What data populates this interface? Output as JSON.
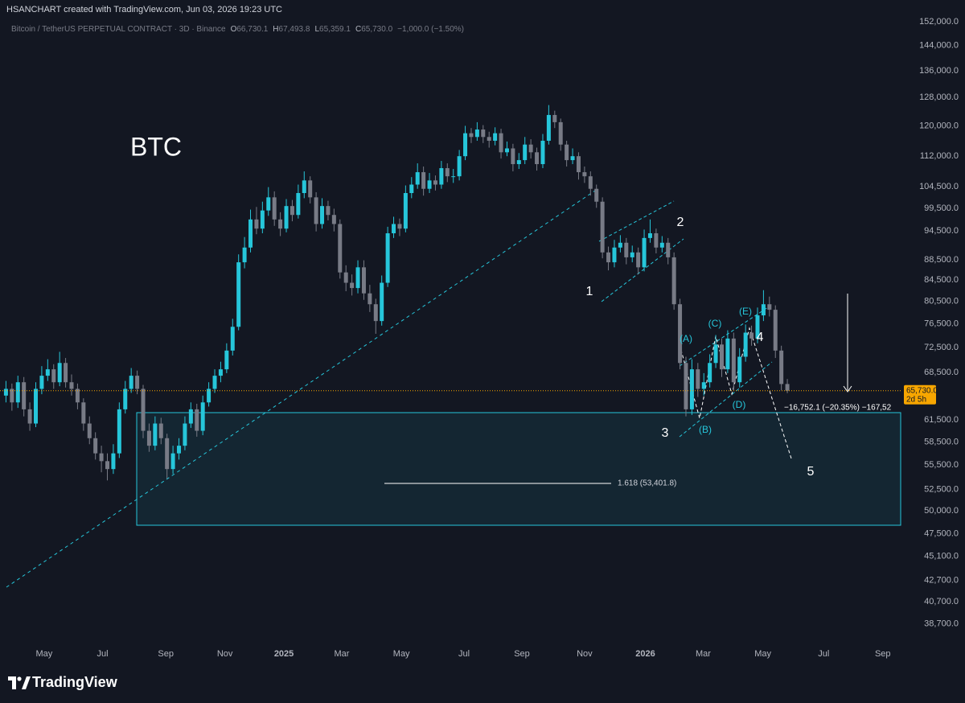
{
  "header": "HSANCHART created with TradingView.com, Jun 03, 2026 19:23 UTC",
  "brand": "TradingView",
  "chart_data": {
    "type": "candlestick",
    "title": "Bitcoin / TetherUS PERPETUAL CONTRACT · 3D · Binance",
    "ohlc_legend": [
      {
        "key": "O",
        "value": "66,730.1"
      },
      {
        "key": "H",
        "value": "67,493.8"
      },
      {
        "key": "L",
        "value": "65,359.1"
      },
      {
        "key": "C",
        "value": "65,730.0"
      }
    ],
    "change": "−1,000.0 (−1.50%)",
    "up_color": "#26c6da",
    "down_color": "#787b86",
    "log_scale": true,
    "grid": false,
    "ylim": [
      37000,
      154000
    ],
    "yticks": [
      {
        "value": 152000,
        "label": "152,000.0"
      },
      {
        "value": 144000,
        "label": "144,000.0"
      },
      {
        "value": 136000,
        "label": "136,000.0"
      },
      {
        "value": 128000,
        "label": "128,000.0"
      },
      {
        "value": 120000,
        "label": "120,000.0"
      },
      {
        "value": 112000,
        "label": "112,000.0"
      },
      {
        "value": 104500,
        "label": "104,500.0"
      },
      {
        "value": 99500,
        "label": "99,500.0"
      },
      {
        "value": 94500,
        "label": "94,500.0"
      },
      {
        "value": 88500,
        "label": "88,500.0"
      },
      {
        "value": 84500,
        "label": "84,500.0"
      },
      {
        "value": 80500,
        "label": "80,500.0"
      },
      {
        "value": 76500,
        "label": "76,500.0"
      },
      {
        "value": 72500,
        "label": "72,500.0"
      },
      {
        "value": 68500,
        "label": "68,500.0"
      },
      {
        "value": 61500,
        "label": "61,500.0"
      },
      {
        "value": 58500,
        "label": "58,500.0"
      },
      {
        "value": 55500,
        "label": "55,500.0"
      },
      {
        "value": 52500,
        "label": "52,500.0"
      },
      {
        "value": 50000,
        "label": "50,000.0"
      },
      {
        "value": 47500,
        "label": "47,500.0"
      },
      {
        "value": 45100,
        "label": "45,100.0"
      },
      {
        "value": 42700,
        "label": "42,700.0"
      },
      {
        "value": 40700,
        "label": "40,700.0"
      },
      {
        "value": 38700,
        "label": "38,700.0"
      }
    ],
    "xlim": [
      -1,
      150
    ],
    "xticks": [
      {
        "value": 6.4,
        "label": "May"
      },
      {
        "value": 16.2,
        "label": "Jul"
      },
      {
        "value": 26.8,
        "label": "Sep"
      },
      {
        "value": 36.7,
        "label": "Nov"
      },
      {
        "value": 46.6,
        "label": "2025"
      },
      {
        "value": 56.3,
        "label": "Mar"
      },
      {
        "value": 66.3,
        "label": "May"
      },
      {
        "value": 76.8,
        "label": "Jul"
      },
      {
        "value": 86.5,
        "label": "Sep"
      },
      {
        "value": 97,
        "label": "Nov"
      },
      {
        "value": 107.2,
        "label": "2026"
      },
      {
        "value": 116.9,
        "label": "Mar"
      },
      {
        "value": 126.9,
        "label": "May"
      },
      {
        "value": 137.1,
        "label": "Jul"
      },
      {
        "value": 147,
        "label": "Sep"
      }
    ],
    "candles": [
      [
        65000,
        67200,
        64000,
        66000
      ],
      [
        66000,
        66800,
        62800,
        64000
      ],
      [
        64000,
        68000,
        63200,
        67000
      ],
      [
        67000,
        67800,
        62000,
        63000
      ],
      [
        63000,
        64000,
        60000,
        61000
      ],
      [
        61000,
        67000,
        60500,
        66000
      ],
      [
        66000,
        69500,
        65200,
        68000
      ],
      [
        68000,
        70600,
        67200,
        69000
      ],
      [
        69000,
        69800,
        66000,
        67000
      ],
      [
        67000,
        71800,
        66400,
        70000
      ],
      [
        70000,
        70800,
        66200,
        67000
      ],
      [
        67000,
        68200,
        65000,
        66000
      ],
      [
        66000,
        66800,
        63000,
        64000
      ],
      [
        64000,
        64600,
        60000,
        61000
      ],
      [
        61000,
        62000,
        58200,
        59000
      ],
      [
        59000,
        59800,
        56200,
        57000
      ],
      [
        57000,
        58000,
        54600,
        56000
      ],
      [
        56000,
        57000,
        53600,
        55000
      ],
      [
        55000,
        58200,
        54400,
        57000
      ],
      [
        57000,
        64000,
        56400,
        63000
      ],
      [
        63000,
        67200,
        62400,
        66000
      ],
      [
        66000,
        69200,
        65400,
        68000
      ],
      [
        68000,
        68800,
        65200,
        66000
      ],
      [
        66000,
        66600,
        59000,
        60000
      ],
      [
        60000,
        61000,
        57200,
        58000
      ],
      [
        58000,
        62000,
        57400,
        61000
      ],
      [
        61000,
        61800,
        58200,
        59000
      ],
      [
        59000,
        59600,
        53800,
        55000
      ],
      [
        55000,
        58000,
        54400,
        57000
      ],
      [
        57000,
        59000,
        56200,
        58000
      ],
      [
        58000,
        62000,
        57400,
        61000
      ],
      [
        61000,
        64000,
        60400,
        63000
      ],
      [
        63000,
        63800,
        59200,
        60000
      ],
      [
        60000,
        65000,
        59400,
        64000
      ],
      [
        64000,
        67000,
        63400,
        66000
      ],
      [
        66000,
        69000,
        65400,
        68000
      ],
      [
        68000,
        70200,
        67000,
        69000
      ],
      [
        69000,
        73200,
        68400,
        72000
      ],
      [
        72000,
        77400,
        71200,
        76000
      ],
      [
        76000,
        89600,
        75400,
        88000
      ],
      [
        88000,
        93200,
        86800,
        91000
      ],
      [
        91000,
        99200,
        90000,
        97000
      ],
      [
        97000,
        99800,
        93800,
        95000
      ],
      [
        95000,
        101000,
        94000,
        99000
      ],
      [
        99000,
        104400,
        97800,
        102000
      ],
      [
        102000,
        103400,
        95600,
        97000
      ],
      [
        97000,
        98600,
        93400,
        95000
      ],
      [
        95000,
        101600,
        94200,
        100000
      ],
      [
        100000,
        101400,
        96600,
        98000
      ],
      [
        98000,
        105000,
        97200,
        103000
      ],
      [
        103000,
        108200,
        101800,
        106000
      ],
      [
        106000,
        107000,
        100600,
        102000
      ],
      [
        102000,
        103200,
        94400,
        96000
      ],
      [
        96000,
        101800,
        95000,
        100000
      ],
      [
        100000,
        101200,
        96800,
        98000
      ],
      [
        98000,
        99400,
        94400,
        96000
      ],
      [
        96000,
        97000,
        84800,
        86000
      ],
      [
        86000,
        87400,
        82400,
        84000
      ],
      [
        84000,
        85600,
        81600,
        83000
      ],
      [
        83000,
        88400,
        82000,
        87000
      ],
      [
        87000,
        88400,
        80800,
        82000
      ],
      [
        82000,
        83600,
        78600,
        80000
      ],
      [
        80000,
        81000,
        74800,
        77000
      ],
      [
        77000,
        85400,
        76200,
        84000
      ],
      [
        84000,
        95400,
        83200,
        94000
      ],
      [
        94000,
        97600,
        93000,
        96000
      ],
      [
        96000,
        97200,
        93400,
        95000
      ],
      [
        95000,
        104800,
        94200,
        103000
      ],
      [
        103000,
        106800,
        101800,
        105000
      ],
      [
        105000,
        110200,
        104000,
        108000
      ],
      [
        108000,
        109400,
        102400,
        104000
      ],
      [
        104000,
        107800,
        103000,
        106000
      ],
      [
        106000,
        107200,
        103600,
        105000
      ],
      [
        105000,
        110800,
        104000,
        109000
      ],
      [
        109000,
        110200,
        105600,
        107000
      ],
      [
        107000,
        108800,
        105400,
        107000
      ],
      [
        107000,
        113600,
        106000,
        112000
      ],
      [
        112000,
        120000,
        111000,
        118000
      ],
      [
        118000,
        119400,
        115400,
        117000
      ],
      [
        117000,
        121000,
        116000,
        119000
      ],
      [
        119000,
        120200,
        115400,
        117000
      ],
      [
        117000,
        118400,
        114200,
        116000
      ],
      [
        116000,
        119600,
        114800,
        118000
      ],
      [
        118000,
        119200,
        111400,
        113000
      ],
      [
        113000,
        115800,
        112000,
        114000
      ],
      [
        114000,
        115200,
        108200,
        110000
      ],
      [
        110000,
        112800,
        108800,
        111000
      ],
      [
        111000,
        117000,
        110000,
        115000
      ],
      [
        115000,
        116400,
        111400,
        113000
      ],
      [
        113000,
        114200,
        108400,
        110000
      ],
      [
        110000,
        117800,
        109000,
        116000
      ],
      [
        116000,
        125800,
        115000,
        123000
      ],
      [
        123000,
        124200,
        119400,
        121000
      ],
      [
        121000,
        122000,
        113400,
        115000
      ],
      [
        115000,
        116000,
        109400,
        111000
      ],
      [
        111000,
        114000,
        110000,
        112000
      ],
      [
        112000,
        113000,
        106200,
        108000
      ],
      [
        108000,
        109400,
        105400,
        107000
      ],
      [
        107000,
        108200,
        102400,
        104000
      ],
      [
        104000,
        105000,
        99600,
        101000
      ],
      [
        101000,
        102000,
        88800,
        90000
      ],
      [
        90000,
        91200,
        86400,
        88000
      ],
      [
        88000,
        92600,
        87000,
        91000
      ],
      [
        91000,
        93600,
        90000,
        92000
      ],
      [
        92000,
        93000,
        87600,
        89000
      ],
      [
        89000,
        91400,
        88000,
        90000
      ],
      [
        90000,
        91000,
        85600,
        87000
      ],
      [
        87000,
        94800,
        86200,
        93000
      ],
      [
        93000,
        97000,
        92000,
        94000
      ],
      [
        94000,
        95000,
        89800,
        91000
      ],
      [
        91000,
        93400,
        90000,
        92000
      ],
      [
        92000,
        93000,
        87600,
        89000
      ],
      [
        89000,
        90000,
        79000,
        80000
      ],
      [
        80000,
        81000,
        69000,
        70000
      ],
      [
        70000,
        71000,
        62000,
        63000
      ],
      [
        63000,
        70600,
        62200,
        69000
      ],
      [
        69000,
        70000,
        64800,
        66000
      ],
      [
        66000,
        68400,
        65000,
        67000
      ],
      [
        67000,
        71400,
        66200,
        70000
      ],
      [
        70000,
        74600,
        69200,
        73000
      ],
      [
        73000,
        74000,
        67800,
        69000
      ],
      [
        69000,
        75400,
        68400,
        74000
      ],
      [
        74000,
        75000,
        65800,
        67000
      ],
      [
        67000,
        72400,
        66200,
        71000
      ],
      [
        71000,
        76400,
        70200,
        75000
      ],
      [
        75000,
        76200,
        72800,
        74000
      ],
      [
        74000,
        79400,
        73200,
        78000
      ],
      [
        78000,
        82600,
        77000,
        80000
      ],
      [
        80000,
        81400,
        77800,
        79000
      ],
      [
        79000,
        79800,
        70800,
        72000
      ],
      [
        72000,
        72800,
        65800,
        66730.1
      ],
      [
        66730.1,
        67493.8,
        65359.1,
        65730
      ]
    ],
    "last_price": {
      "value": 65730,
      "label": "65,730.0"
    },
    "countdown": "2d 5h",
    "annotations": {
      "asset": "BTC",
      "waves": [
        "1",
        "2",
        "3",
        "4",
        "5"
      ],
      "subwaves": [
        "(A)",
        "(B)",
        "(C)",
        "(D)",
        "(E)"
      ],
      "fib": "1.618 (53,401.8)",
      "measure": "−16,752.1 (−20.35%) −167,52"
    }
  }
}
